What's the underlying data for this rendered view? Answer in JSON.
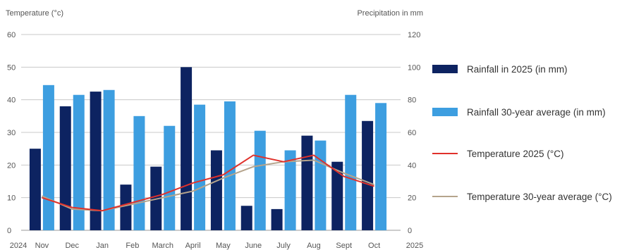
{
  "chart_data": {
    "type": "bar",
    "ylabel_left": "Temperature (°c)",
    "ylabel_right": "Precipitation in mm",
    "categories": [
      "Nov",
      "Dec",
      "Jan",
      "Feb",
      "March",
      "April",
      "May",
      "June",
      "July",
      "Aug",
      "Sept",
      "Oct"
    ],
    "x_end_labels": [
      "2024",
      "2025"
    ],
    "y_left": {
      "min": 0,
      "max": 60,
      "ticks": [
        "0",
        "10",
        "20",
        "30",
        "40",
        "50",
        "60"
      ]
    },
    "y_right": {
      "min": 0,
      "max": 120,
      "ticks": [
        "0",
        "20",
        "40",
        "60",
        "80",
        "100",
        "120"
      ]
    },
    "grid": true,
    "legend_position": "right",
    "series": [
      {
        "name": "Rainfall in 2025 (in mm)",
        "kind": "bar",
        "axis": "right",
        "color": "#0d2361",
        "values": [
          50,
          76,
          85,
          28,
          39,
          100,
          49,
          15,
          13,
          58,
          42,
          67
        ]
      },
      {
        "name": "Rainfall 30-year average (in mm)",
        "kind": "bar",
        "axis": "right",
        "color": "#3d9ee0",
        "values": [
          89,
          83,
          86,
          70,
          64,
          77,
          79,
          61,
          49,
          55,
          83,
          78
        ]
      },
      {
        "name": "Temperature 2025 (°C)",
        "kind": "line",
        "axis": "left",
        "color": "#e0312b",
        "values": [
          10,
          7,
          6,
          8.5,
          11,
          14.5,
          17,
          23,
          21,
          23,
          16.5,
          13.5
        ]
      },
      {
        "name": "Temperature 30-year average (°C)",
        "kind": "line",
        "axis": "left",
        "color": "#b5a48c",
        "values": [
          10.5,
          6.5,
          6,
          8,
          10,
          12,
          16,
          19.5,
          21,
          21.5,
          17.5,
          14
        ]
      }
    ]
  }
}
